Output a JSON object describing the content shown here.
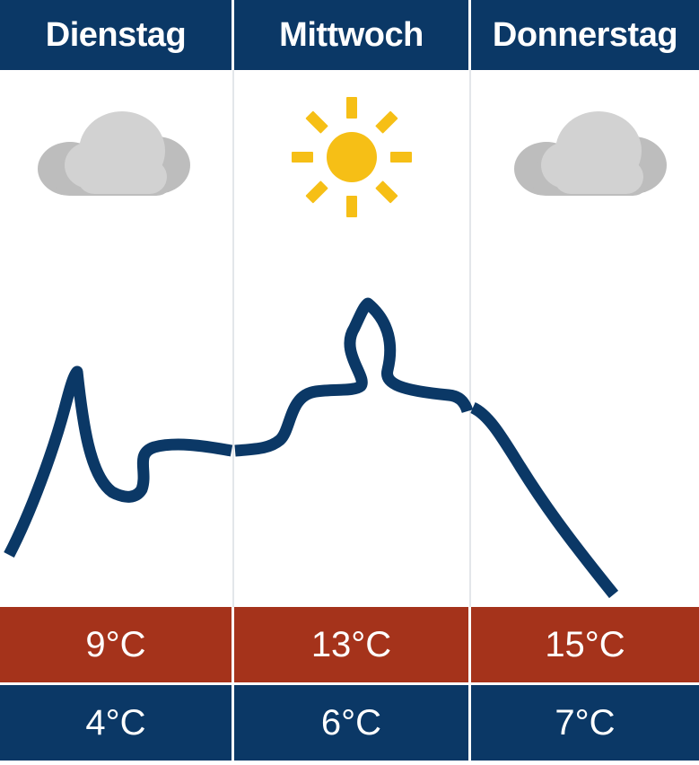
{
  "colors": {
    "header_bg": "#0b3866",
    "high_bg": "#a5331b",
    "low_bg": "#0b3866",
    "curve": "#0b3866",
    "cloud": "#d2d2d2",
    "cloud_back": "#bdbdbd",
    "sun": "#f6bf16"
  },
  "days": [
    {
      "name": "Dienstag",
      "icon": "cloud-icon",
      "high": "9°C",
      "low": "4°C"
    },
    {
      "name": "Mittwoch",
      "icon": "sun-icon",
      "high": "13°C",
      "low": "6°C"
    },
    {
      "name": "Donnerstag",
      "icon": "cloud-icon",
      "high": "15°C",
      "low": "7°C"
    }
  ]
}
